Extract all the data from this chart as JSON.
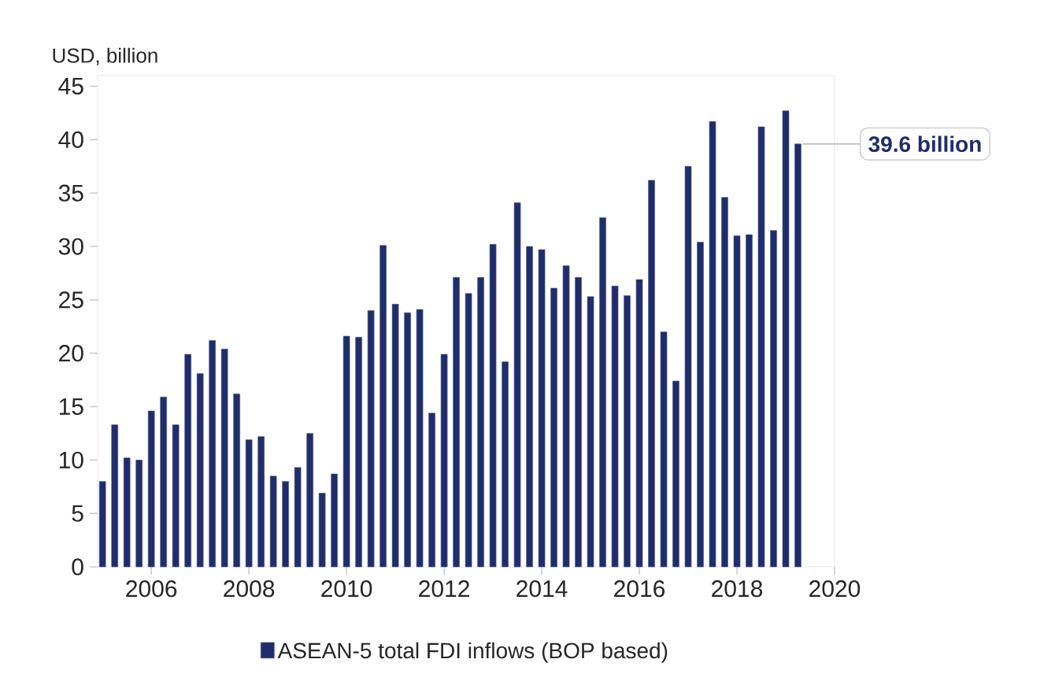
{
  "chart_data": {
    "type": "bar",
    "ylabel": "USD, billion",
    "x": [
      2005.0,
      2005.25,
      2005.5,
      2005.75,
      2006.0,
      2006.25,
      2006.5,
      2006.75,
      2007.0,
      2007.25,
      2007.5,
      2007.75,
      2008.0,
      2008.25,
      2008.5,
      2008.75,
      2009.0,
      2009.25,
      2009.5,
      2009.75,
      2010.0,
      2010.25,
      2010.5,
      2010.75,
      2011.0,
      2011.25,
      2011.5,
      2011.75,
      2012.0,
      2012.25,
      2012.5,
      2012.75,
      2013.0,
      2013.25,
      2013.5,
      2013.75,
      2014.0,
      2014.25,
      2014.5,
      2014.75,
      2015.0,
      2015.25,
      2015.5,
      2015.75,
      2016.0,
      2016.25,
      2016.5,
      2016.75,
      2017.0,
      2017.25,
      2017.5,
      2017.75,
      2018.0,
      2018.25,
      2018.5,
      2018.75,
      2019.0,
      2019.25
    ],
    "series": [
      {
        "name": "ASEAN-5 total FDI inflows (BOP based)",
        "color": "#1f2d6b",
        "values": [
          8.0,
          13.3,
          10.2,
          10.0,
          14.6,
          15.9,
          13.3,
          19.9,
          18.1,
          21.2,
          20.4,
          16.2,
          11.9,
          12.2,
          8.5,
          8.0,
          9.3,
          12.5,
          6.9,
          8.7,
          21.6,
          21.5,
          24.0,
          30.1,
          24.6,
          23.8,
          24.1,
          14.4,
          19.9,
          27.1,
          25.6,
          27.1,
          30.2,
          19.2,
          34.1,
          30.0,
          29.7,
          26.1,
          28.2,
          27.1,
          25.3,
          32.7,
          26.3,
          25.4,
          26.9,
          36.2,
          22.0,
          17.4,
          37.5,
          30.4,
          41.7,
          34.6,
          31.0,
          31.1,
          41.2,
          31.5,
          42.7,
          39.6
        ]
      }
    ],
    "xlim": [
      2004.9,
      2020
    ],
    "xticks": [
      2006,
      2008,
      2010,
      2012,
      2014,
      2016,
      2018,
      2020
    ],
    "ylim": [
      0,
      46
    ],
    "yticks": [
      0,
      5,
      10,
      15,
      20,
      25,
      30,
      35,
      40,
      45
    ],
    "annotations": [
      {
        "text": "39.6 billion",
        "x": 2019.25,
        "y": 39.6
      }
    ],
    "legend": "bottom"
  }
}
